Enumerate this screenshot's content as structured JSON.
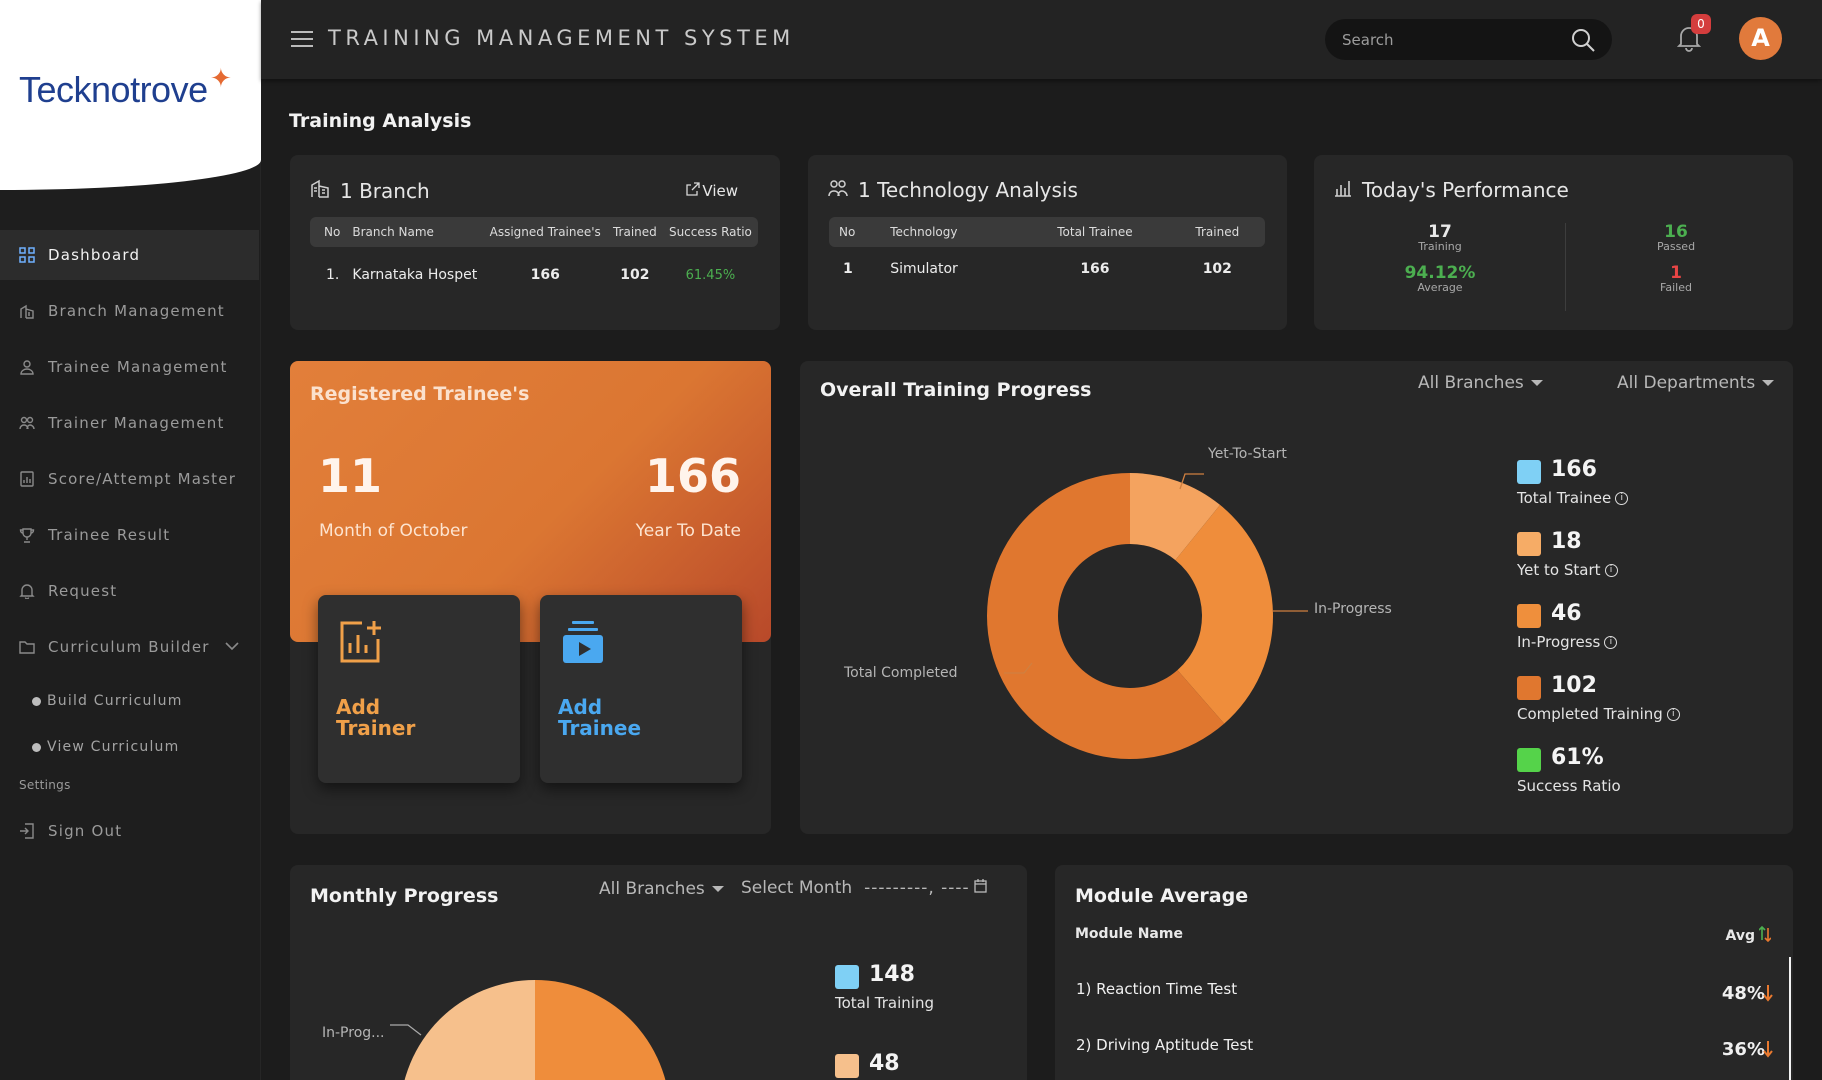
{
  "brand": {
    "logo_text": "Tecknotrove"
  },
  "header": {
    "title": "TRAINING MANAGEMENT SYSTEM",
    "search_placeholder": "Search",
    "notification_count": "0",
    "avatar_initial": "A"
  },
  "sidebar": {
    "items": [
      {
        "label": "Dashboard",
        "icon": "grid-icon",
        "active": true
      },
      {
        "label": "Branch Management",
        "icon": "building-icon"
      },
      {
        "label": "Trainee Management",
        "icon": "user-icon"
      },
      {
        "label": "Trainer Management",
        "icon": "users-icon"
      },
      {
        "label": "Score/Attempt Master",
        "icon": "report-icon"
      },
      {
        "label": "Trainee Result",
        "icon": "trophy-icon"
      },
      {
        "label": "Request",
        "icon": "bell-icon"
      },
      {
        "label": "Curriculum Builder",
        "icon": "folder-icon"
      }
    ],
    "sub_items": [
      "Build Curriculum",
      "View Curriculum"
    ],
    "settings_label": "Settings",
    "sign_out": "Sign Out"
  },
  "page": {
    "section_title": "Training Analysis"
  },
  "branch_card": {
    "title": "1 Branch",
    "view_label": "View",
    "columns": [
      "No",
      "Branch Name",
      "Assigned Trainee's",
      "Trained",
      "Success Ratio"
    ],
    "rows": [
      [
        "1.",
        "Karnataka Hospet",
        "166",
        "102",
        "61.45%"
      ]
    ]
  },
  "tech_card": {
    "title": "1 Technology Analysis",
    "columns": [
      "No",
      "Technology",
      "Total Trainee",
      "Trained"
    ],
    "rows": [
      [
        "1",
        "Simulator",
        "166",
        "102"
      ]
    ]
  },
  "performance": {
    "title": "Today's Performance",
    "training_value": "17",
    "training_label": "Training",
    "average_value": "94.12%",
    "average_label": "Average",
    "passed_value": "16",
    "passed_label": "Passed",
    "failed_value": "1",
    "failed_label": "Failed"
  },
  "registered": {
    "title": "Registered Trainee's",
    "month_value": "11",
    "month_label": "Month of October",
    "ytd_value": "166",
    "ytd_label": "Year To Date",
    "add_trainer_line1": "Add",
    "add_trainer_line2": "Trainer",
    "add_trainee_line1": "Add",
    "add_trainee_line2": "Trainee"
  },
  "overall": {
    "title": "Overall Training Progress",
    "branch_filter": "All Branches",
    "dept_filter": "All Departments",
    "callouts": {
      "yet": "Yet-To-Start",
      "progress": "In-Progress",
      "completed": "Total Completed"
    },
    "legend": [
      {
        "value": "166",
        "label": "Total Trainee",
        "color": "#7fd0f5",
        "info": true
      },
      {
        "value": "18",
        "label": "Yet to Start",
        "color": "#f6ac66",
        "info": true
      },
      {
        "value": "46",
        "label": "In-Progress",
        "color": "#ef8f3c",
        "info": true
      },
      {
        "value": "102",
        "label": "Completed Training",
        "color": "#e0772f",
        "info": true
      },
      {
        "value": "61%",
        "label": "Success Ratio",
        "color": "#55d34a",
        "info": false
      }
    ]
  },
  "chart_data": {
    "type": "pie",
    "title": "Overall Training Progress",
    "categories": [
      "Yet-To-Start",
      "In-Progress",
      "Total Completed"
    ],
    "values": [
      18,
      46,
      102
    ],
    "colors": [
      "#f4a35f",
      "#ef8d3b",
      "#e0772f"
    ],
    "donut": true
  },
  "monthly": {
    "title": "Monthly Progress",
    "branch_filter": "All Branches",
    "month_label": "Select Month",
    "month_value": "---------, ----",
    "callout": "In-Prog...",
    "legend": [
      {
        "value": "148",
        "label": "Total Training",
        "color": "#7fd0f5"
      },
      {
        "value": "48",
        "label": "",
        "color": "#f6c08c"
      }
    ]
  },
  "module": {
    "title": "Module Average",
    "col_name": "Module Name",
    "col_avg": "Avg",
    "rows": [
      {
        "name": "1) Reaction Time Test",
        "value": "48%"
      },
      {
        "name": "2) Driving Aptitude Test",
        "value": "36%"
      }
    ]
  }
}
